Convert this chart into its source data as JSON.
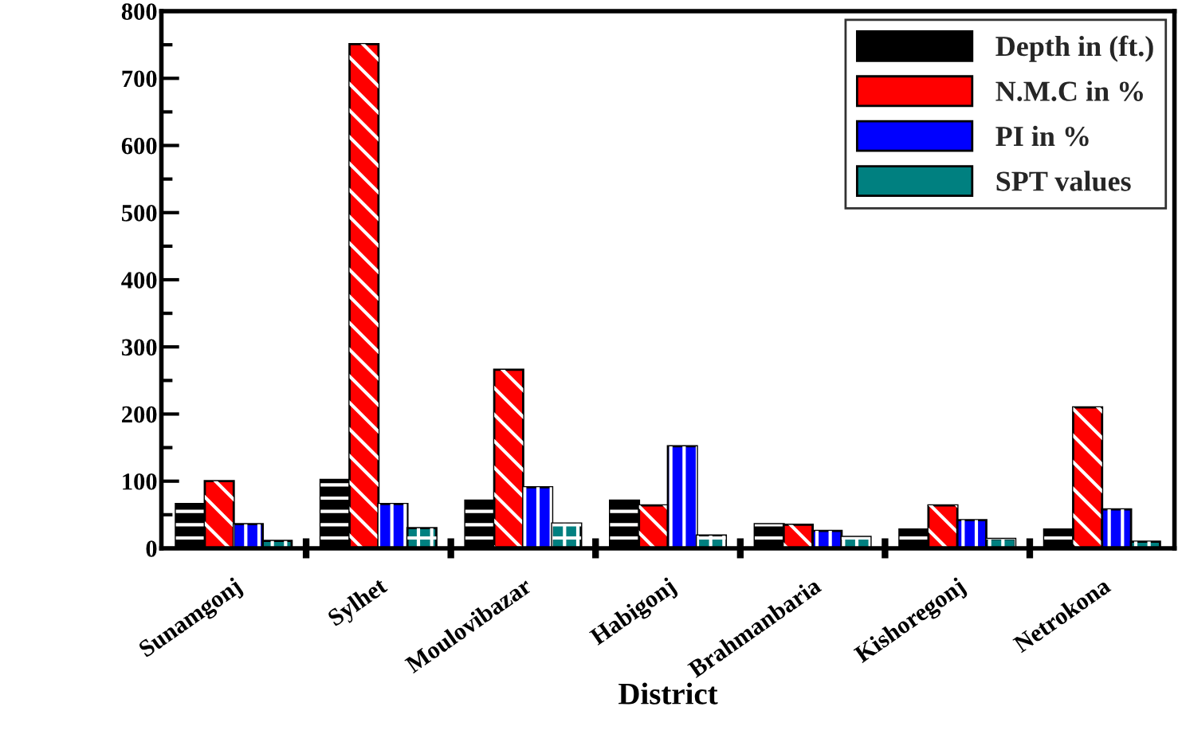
{
  "chart_data": {
    "type": "bar",
    "xlabel": "District",
    "categories": [
      "Sunamgonj",
      "Sylhet",
      "Moulovibazar",
      "Habigonj",
      "Brahmanbaria",
      "Kishoregonj",
      "Netrokona"
    ],
    "series": [
      {
        "name": "Depth in (ft.)",
        "color": "#000000",
        "values": [
          66,
          102,
          71,
          71,
          36,
          28,
          28
        ]
      },
      {
        "name": "N.M.C in %",
        "color": "#ff0000",
        "values": [
          100,
          751,
          266,
          64,
          35,
          64,
          210
        ]
      },
      {
        "name": "PI in %",
        "color": "#0000ff",
        "values": [
          36,
          66,
          91,
          152,
          26,
          42,
          58
        ]
      },
      {
        "name": "SPT values",
        "color": "#008080",
        "values": [
          11,
          30,
          37,
          19,
          17,
          14,
          10
        ]
      }
    ],
    "ylim": [
      0,
      800
    ],
    "yticks": [
      0,
      100,
      200,
      300,
      400,
      500,
      600,
      700,
      800
    ],
    "legend": "top right",
    "grid": false
  }
}
